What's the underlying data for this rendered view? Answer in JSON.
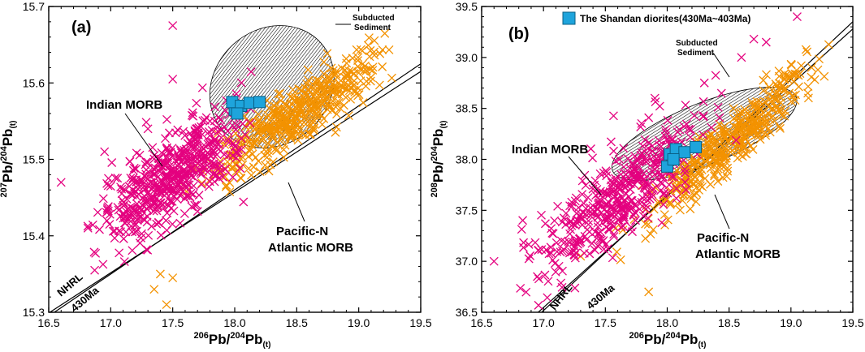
{
  "colors": {
    "indian": "#e4007f",
    "pacific": "#f39200",
    "shandan": "#1ea4dc",
    "axis": "#000000"
  },
  "chart_data": [
    {
      "type": "scatter",
      "panel_label": "(a)",
      "xlabel": {
        "pre": "206",
        "main": "Pb/",
        "sup": "204",
        "main2": "Pb",
        "sub": "(t)"
      },
      "ylabel": {
        "pre": "207",
        "main": "Pb/",
        "sup": "204",
        "main2": "Pb",
        "sub": "(t)"
      },
      "xlim": [
        16.5,
        19.5
      ],
      "ylim": [
        15.3,
        15.7
      ],
      "xticks": [
        16.5,
        17.0,
        17.5,
        18.0,
        18.5,
        19.0,
        19.5
      ],
      "xtick_labels": [
        "16.5",
        "17.0",
        "17.5",
        "18.0",
        "18.5",
        "19.0",
        "19.5"
      ],
      "yticks": [
        15.3,
        15.4,
        15.5,
        15.6,
        15.7
      ],
      "ytick_labels": [
        "15.3",
        "15.4",
        "15.5",
        "15.6",
        "15.7"
      ],
      "series": [
        {
          "name": "Indian MORB",
          "marker": "x",
          "color": "#e4007f",
          "cluster": {
            "x_range": [
              16.7,
              18.3
            ],
            "line_slope": 0.105,
            "line_intercept": 13.605,
            "offset_above": 0.035,
            "spread": 0.028,
            "count": 520
          },
          "outliers": [
            [
              17.5,
              15.675
            ],
            [
              17.5,
              15.605
            ],
            [
              16.6,
              15.47
            ],
            [
              16.95,
              15.51
            ],
            [
              17.3,
              15.54
            ],
            [
              17.8,
              15.55
            ]
          ]
        },
        {
          "name": "Pacific-N Atlantic MORB",
          "marker": "x",
          "color": "#f39200",
          "cluster": {
            "x_range": [
              17.5,
              19.45
            ],
            "line_slope": 0.105,
            "line_intercept": 13.605,
            "offset_above": 0.012,
            "spread": 0.02,
            "count": 460
          },
          "outliers": [
            [
              17.4,
              15.35
            ],
            [
              17.45,
              15.31
            ],
            [
              17.35,
              15.33
            ],
            [
              17.5,
              15.345
            ]
          ]
        },
        {
          "name": "The Shandan diorites(430Ma~403Ma)",
          "marker": "square",
          "color": "#1ea4dc",
          "points": [
            [
              18.0,
              15.565
            ],
            [
              17.98,
              15.575
            ],
            [
              18.05,
              15.57
            ],
            [
              18.12,
              15.574
            ],
            [
              18.2,
              15.575
            ],
            [
              18.02,
              15.56
            ]
          ]
        }
      ],
      "reference_lines": [
        {
          "name": "NHRL",
          "p1": [
            16.5,
            15.299
          ],
          "p2": [
            19.5,
            15.615
          ]
        },
        {
          "name": "430Ma",
          "p1": [
            16.5,
            15.295
          ],
          "p2": [
            19.5,
            15.625
          ]
        }
      ],
      "field": {
        "name": "Subducted Sediment",
        "center": [
          18.3,
          15.595
        ],
        "rx": 0.53,
        "ry": 0.075,
        "rotation_deg": -42
      },
      "annotations": [
        "Indian MORB",
        "Pacific-N",
        "Atlantic MORB",
        "Subducted",
        "Sediment",
        "NHRL",
        "430Ma"
      ]
    },
    {
      "type": "scatter",
      "panel_label": "(b)",
      "legend": "The Shandan diorites(430Ma~403Ma)",
      "xlabel": {
        "pre": "206",
        "main": "Pb/",
        "sup": "204",
        "main2": "Pb",
        "sub": "(t)"
      },
      "ylabel": {
        "pre": "208",
        "main": "Pb/",
        "sup": "204",
        "main2": "Pb",
        "sub": "(t)"
      },
      "xlim": [
        16.5,
        19.5
      ],
      "ylim": [
        36.5,
        39.5
      ],
      "xticks": [
        16.5,
        17.0,
        17.5,
        18.0,
        18.5,
        19.0,
        19.5
      ],
      "xtick_labels": [
        "16.5",
        "17.0",
        "17.5",
        "18.0",
        "18.5",
        "19.0",
        "19.5"
      ],
      "yticks": [
        36.5,
        37.0,
        37.5,
        38.0,
        38.5,
        39.0,
        39.5
      ],
      "ytick_labels": [
        "36.5",
        "37.0",
        "37.5",
        "38.0",
        "38.5",
        "39.0",
        "39.5"
      ],
      "series": [
        {
          "name": "Indian MORB",
          "marker": "x",
          "color": "#e4007f",
          "cluster": {
            "x_range": [
              16.6,
              18.6
            ],
            "line_slope": 1.05,
            "line_intercept": 18.7,
            "offset_above": 0.45,
            "spread": 0.22,
            "count": 430
          },
          "outliers": [
            [
              19.05,
              39.4
            ],
            [
              18.8,
              39.15
            ],
            [
              18.6,
              39.0
            ],
            [
              18.3,
              38.75
            ],
            [
              17.9,
              38.6
            ],
            [
              18.7,
              39.18
            ],
            [
              16.6,
              37.0
            ],
            [
              16.95,
              36.85
            ]
          ]
        },
        {
          "name": "Pacific-N Atlantic MORB",
          "marker": "x",
          "color": "#f39200",
          "cluster": {
            "x_range": [
              17.5,
              19.45
            ],
            "line_slope": 1.05,
            "line_intercept": 18.7,
            "offset_above": 0.05,
            "spread": 0.13,
            "count": 420
          },
          "outliers": [
            [
              17.85,
              36.7
            ],
            [
              17.3,
              37.05
            ]
          ]
        },
        {
          "name": "The Shandan diorites(430Ma~403Ma)",
          "marker": "square",
          "color": "#1ea4dc",
          "points": [
            [
              18.0,
              37.93
            ],
            [
              18.02,
              38.05
            ],
            [
              18.07,
              38.1
            ],
            [
              18.14,
              38.07
            ],
            [
              18.23,
              38.12
            ],
            [
              18.05,
              38.0
            ]
          ]
        }
      ],
      "reference_lines": [
        {
          "name": "NHRL",
          "p1": [
            16.5,
            36.0
          ],
          "p2": [
            19.5,
            39.28
          ]
        },
        {
          "name": "430Ma",
          "p1": [
            16.5,
            35.95
          ],
          "p2": [
            19.5,
            39.35
          ]
        }
      ],
      "field": {
        "name": "Subducted Sediment",
        "center": [
          18.3,
          38.25
        ],
        "rx": 0.8,
        "ry": 0.3,
        "rotation_deg": -22
      },
      "annotations": [
        "Indian MORB",
        "Pacific-N",
        "Atlantic MORB",
        "Subducted",
        "Sediment",
        "NHRL",
        "430Ma"
      ]
    }
  ]
}
